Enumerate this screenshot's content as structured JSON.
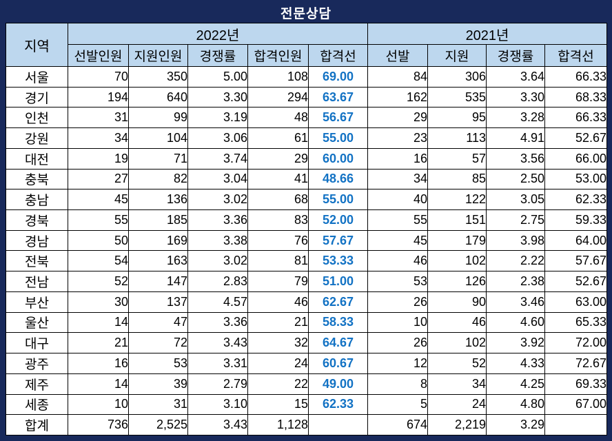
{
  "title": "전문상담",
  "colors": {
    "frame_navy": "#18295B",
    "header_bg": "#BDD7EE",
    "pass_line_blue": "#1272C4",
    "text": "#000000"
  },
  "header": {
    "region_label": "지역",
    "groups": [
      {
        "label": "2022년",
        "columns": [
          "선발인원",
          "지원인원",
          "경쟁률",
          "합격인원",
          "합격선"
        ]
      },
      {
        "label": "2021년",
        "columns": [
          "선발",
          "지원",
          "경쟁률",
          "합격선"
        ]
      }
    ]
  },
  "rows": [
    {
      "region": "서울",
      "y2022": [
        "70",
        "350",
        "5.00",
        "108",
        "69.00"
      ],
      "y2021": [
        "84",
        "306",
        "3.64",
        "66.33"
      ]
    },
    {
      "region": "경기",
      "y2022": [
        "194",
        "640",
        "3.30",
        "294",
        "63.67"
      ],
      "y2021": [
        "162",
        "535",
        "3.30",
        "68.33"
      ]
    },
    {
      "region": "인천",
      "y2022": [
        "31",
        "99",
        "3.19",
        "48",
        "56.67"
      ],
      "y2021": [
        "29",
        "95",
        "3.28",
        "66.33"
      ]
    },
    {
      "region": "강원",
      "y2022": [
        "34",
        "104",
        "3.06",
        "61",
        "55.00"
      ],
      "y2021": [
        "23",
        "113",
        "4.91",
        "52.67"
      ]
    },
    {
      "region": "대전",
      "y2022": [
        "19",
        "71",
        "3.74",
        "29",
        "60.00"
      ],
      "y2021": [
        "16",
        "57",
        "3.56",
        "66.00"
      ]
    },
    {
      "region": "충북",
      "y2022": [
        "27",
        "82",
        "3.04",
        "41",
        "48.66"
      ],
      "y2021": [
        "34",
        "85",
        "2.50",
        "53.00"
      ]
    },
    {
      "region": "충남",
      "y2022": [
        "45",
        "136",
        "3.02",
        "68",
        "55.00"
      ],
      "y2021": [
        "40",
        "122",
        "3.05",
        "62.33"
      ]
    },
    {
      "region": "경북",
      "y2022": [
        "55",
        "185",
        "3.36",
        "83",
        "52.00"
      ],
      "y2021": [
        "55",
        "151",
        "2.75",
        "59.33"
      ]
    },
    {
      "region": "경남",
      "y2022": [
        "50",
        "169",
        "3.38",
        "76",
        "57.67"
      ],
      "y2021": [
        "45",
        "179",
        "3.98",
        "64.00"
      ]
    },
    {
      "region": "전북",
      "y2022": [
        "54",
        "163",
        "3.02",
        "81",
        "53.33"
      ],
      "y2021": [
        "46",
        "102",
        "2.22",
        "57.67"
      ]
    },
    {
      "region": "전남",
      "y2022": [
        "52",
        "147",
        "2.83",
        "79",
        "51.00"
      ],
      "y2021": [
        "53",
        "126",
        "2.38",
        "52.67"
      ]
    },
    {
      "region": "부산",
      "y2022": [
        "30",
        "137",
        "4.57",
        "46",
        "62.67"
      ],
      "y2021": [
        "26",
        "90",
        "3.46",
        "63.00"
      ]
    },
    {
      "region": "울산",
      "y2022": [
        "14",
        "47",
        "3.36",
        "21",
        "58.33"
      ],
      "y2021": [
        "10",
        "46",
        "4.60",
        "65.33"
      ]
    },
    {
      "region": "대구",
      "y2022": [
        "21",
        "72",
        "3.43",
        "32",
        "64.67"
      ],
      "y2021": [
        "26",
        "102",
        "3.92",
        "72.00"
      ]
    },
    {
      "region": "광주",
      "y2022": [
        "16",
        "53",
        "3.31",
        "24",
        "60.67"
      ],
      "y2021": [
        "12",
        "52",
        "4.33",
        "72.67"
      ]
    },
    {
      "region": "제주",
      "y2022": [
        "14",
        "39",
        "2.79",
        "22",
        "49.00"
      ],
      "y2021": [
        "8",
        "34",
        "4.25",
        "69.33"
      ]
    },
    {
      "region": "세종",
      "y2022": [
        "10",
        "31",
        "3.10",
        "15",
        "62.33"
      ],
      "y2021": [
        "5",
        "24",
        "4.80",
        "67.00"
      ]
    }
  ],
  "total_row": {
    "region": "합계",
    "y2022": [
      "736",
      "2,525",
      "3.43",
      "1,128",
      ""
    ],
    "y2021": [
      "674",
      "2,219",
      "3.29",
      ""
    ]
  }
}
